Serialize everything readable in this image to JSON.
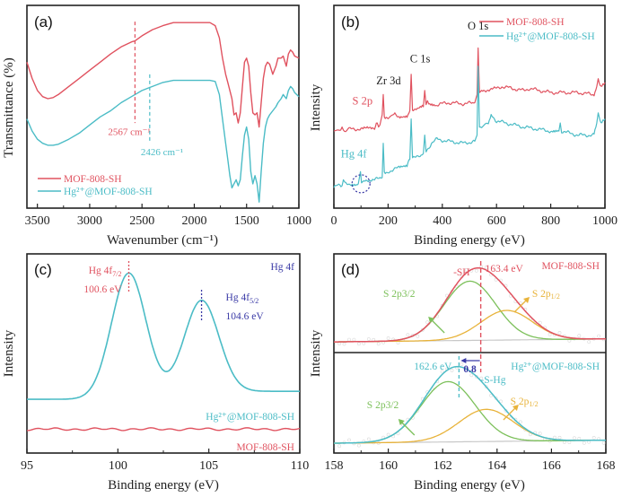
{
  "colors": {
    "red": "#e0525f",
    "cyan": "#4bbcc6",
    "green": "#7cc05a",
    "orange": "#e8b33a",
    "navy": "#3a3aa6",
    "gray": "#c8c8c8",
    "frame": "#222222"
  },
  "chart_data": [
    {
      "panel": "(a)",
      "type": "line",
      "title": "",
      "xlabel": "Wavenumber (cm⁻¹)",
      "ylabel": "Transmittance (%)",
      "xlim": [
        3600,
        1000
      ],
      "x_reversed": true,
      "ylim": [
        0,
        100
      ],
      "y_ticks_shown": false,
      "x_ticks": [
        3500,
        3000,
        2500,
        2000,
        1500,
        1000
      ],
      "x_tick_labels": [
        "3500",
        "3000",
        "2500",
        "2000",
        "1500",
        "1000"
      ],
      "legend": {
        "placement": "bottom-left",
        "entries": [
          "MOF-808-SH",
          "Hg²⁺@MOF-808-SH"
        ]
      },
      "series": [
        {
          "name": "MOF-808-SH",
          "color_key": "red",
          "x": [
            3600,
            3550,
            3500,
            3450,
            3400,
            3350,
            3300,
            3200,
            3100,
            3000,
            2900,
            2800,
            2700,
            2600,
            2567,
            2500,
            2400,
            2300,
            2200,
            2100,
            2000,
            1900,
            1850,
            1800,
            1760,
            1730,
            1700,
            1680,
            1660,
            1640,
            1620,
            1600,
            1580,
            1560,
            1540,
            1520,
            1500,
            1480,
            1460,
            1440,
            1420,
            1400,
            1380,
            1360,
            1340,
            1320,
            1300,
            1280,
            1250,
            1220,
            1200,
            1170,
            1150,
            1120,
            1100,
            1080,
            1060,
            1040,
            1000
          ],
          "y": [
            72,
            64,
            58,
            55,
            54,
            54.5,
            56,
            60,
            64,
            68,
            72,
            76,
            79.5,
            82,
            82.5,
            85,
            88,
            90,
            91.5,
            91.5,
            91.5,
            91.5,
            91.5,
            90,
            84,
            74,
            66,
            62,
            58,
            54,
            46,
            47,
            42,
            47,
            60,
            72,
            74,
            70,
            57,
            47,
            46,
            47,
            40,
            52,
            64,
            70,
            72,
            71,
            66,
            70,
            74,
            74,
            75,
            70,
            76,
            78,
            77,
            75,
            74
          ]
        },
        {
          "name": "Hg²⁺@MOF-808-SH",
          "color_key": "cyan",
          "x": [
            3600,
            3550,
            3500,
            3450,
            3400,
            3350,
            3300,
            3200,
            3100,
            3000,
            2900,
            2800,
            2700,
            2600,
            2500,
            2426,
            2400,
            2300,
            2200,
            2100,
            2000,
            1900,
            1850,
            1800,
            1760,
            1730,
            1700,
            1680,
            1660,
            1640,
            1620,
            1600,
            1580,
            1560,
            1540,
            1520,
            1500,
            1480,
            1460,
            1440,
            1420,
            1400,
            1380,
            1360,
            1340,
            1320,
            1300,
            1280,
            1250,
            1220,
            1200,
            1170,
            1150,
            1120,
            1100,
            1080,
            1060,
            1040,
            1000
          ],
          "y": [
            44,
            38,
            34,
            32,
            31,
            31,
            31.5,
            34,
            37,
            41,
            45,
            48,
            52,
            55,
            58,
            59.5,
            60,
            62,
            63,
            63,
            63,
            63,
            63,
            62.5,
            56,
            44,
            32,
            24,
            16,
            10,
            12,
            14,
            11,
            14,
            26,
            36,
            40,
            34,
            18,
            12,
            16,
            12,
            3,
            18,
            32,
            40,
            44,
            46,
            48,
            50,
            52,
            54,
            56,
            54,
            58,
            60,
            59,
            57,
            55
          ]
        }
      ],
      "annotations": [
        {
          "text": "2567 cm⁻¹",
          "x": 2567,
          "color_key": "red",
          "style": "dashed-vertical"
        },
        {
          "text": "2426 cm⁻¹",
          "x": 2426,
          "color_key": "cyan",
          "style": "dashed-vertical"
        }
      ]
    },
    {
      "panel": "(b)",
      "type": "line",
      "title": "",
      "xlabel": "Binding energy (eV)",
      "ylabel": "Intensity",
      "xlim": [
        0,
        1000
      ],
      "ylim": [
        0,
        100
      ],
      "y_ticks_shown": false,
      "x_ticks": [
        0,
        200,
        400,
        600,
        800,
        1000
      ],
      "x_tick_labels": [
        "0",
        "200",
        "400",
        "600",
        "800",
        "1000"
      ],
      "legend": {
        "placement": "top-right",
        "entries": [
          "MOF-808-SH",
          "Hg²⁺@MOF-808-SH"
        ]
      },
      "series": [
        {
          "name": "MOF-808-SH",
          "color_key": "red",
          "x": [
            0,
            25,
            30,
            35,
            60,
            100,
            150,
            160,
            165,
            170,
            178,
            182,
            186,
            200,
            225,
            230,
            240,
            270,
            280,
            285,
            290,
            300,
            330,
            335,
            340,
            345,
            350,
            380,
            420,
            480,
            520,
            528,
            532,
            537,
            545,
            600,
            620,
            700,
            720,
            800,
            900,
            960,
            970,
            975,
            985,
            1000
          ],
          "y": [
            38,
            38.5,
            40,
            38.5,
            39,
            39,
            39.5,
            42,
            40,
            41,
            46,
            56,
            44,
            44,
            47,
            45,
            45,
            45,
            48,
            66,
            48,
            48,
            50,
            58,
            51,
            53,
            52,
            51,
            52,
            51.5,
            52,
            56,
            79,
            57,
            58,
            59,
            60,
            58,
            59,
            57,
            57,
            56,
            60,
            64,
            60,
            62
          ]
        },
        {
          "name": "Hg²⁺@MOF-808-SH",
          "color_key": "cyan",
          "x": [
            0,
            10,
            30,
            35,
            40,
            60,
            90,
            98,
            102,
            106,
            115,
            150,
            178,
            182,
            186,
            200,
            240,
            270,
            280,
            285,
            290,
            310,
            330,
            335,
            340,
            360,
            380,
            420,
            480,
            520,
            528,
            532,
            537,
            545,
            570,
            580,
            600,
            700,
            800,
            830,
            835,
            840,
            900,
            960,
            970,
            975,
            985,
            1000
          ],
          "y": [
            10,
            11,
            11,
            14,
            12,
            12,
            12,
            18,
            12.5,
            13,
            14,
            14,
            15,
            32,
            18,
            18,
            20,
            21,
            24,
            44,
            25,
            25,
            27,
            36,
            28,
            32,
            34,
            33,
            32,
            33,
            36,
            70,
            40,
            40,
            42,
            46,
            43,
            40,
            38,
            38,
            42,
            38,
            36,
            36,
            42,
            46,
            42,
            44
          ]
        }
      ],
      "annotations": [
        {
          "text": "O 1s",
          "x": 532,
          "color_key": "frame"
        },
        {
          "text": "C 1s",
          "x": 285,
          "color_key": "frame"
        },
        {
          "text": "Zr 3d",
          "x": 182,
          "color_key": "frame"
        },
        {
          "text": "S 2p",
          "x": 165,
          "color_key": "red"
        },
        {
          "text": "Hg 4f",
          "x": 100,
          "color_key": "cyan"
        }
      ]
    },
    {
      "panel": "(c)",
      "type": "line",
      "title": "Hg 4f",
      "xlabel": "Binding energy (eV)",
      "ylabel": "Intensity",
      "xlim": [
        95,
        110
      ],
      "ylim": [
        0,
        100
      ],
      "y_ticks_shown": false,
      "x_ticks": [
        95,
        100,
        105,
        110
      ],
      "x_tick_labels": [
        "95",
        "100",
        "105",
        "110"
      ],
      "series": [
        {
          "name": "Hg²⁺@MOF-808-SH",
          "color_key": "cyan",
          "model": "two-gaussian",
          "baseline_left": 27,
          "baseline_right": 31,
          "peaks": [
            {
              "center": 100.6,
              "height": 63,
              "sigma": 0.95
            },
            {
              "center": 104.6,
              "height": 46,
              "sigma": 0.95
            }
          ]
        },
        {
          "name": "MOF-808-SH",
          "color_key": "red",
          "model": "flat",
          "level": 12
        }
      ],
      "annotations": [
        {
          "label": "Hg 4f",
          "sub": "7/2",
          "value": "100.6 eV",
          "x": 100.6,
          "color_key": "red"
        },
        {
          "label": "Hg 4f",
          "sub": "5/2",
          "value": "104.6 eV",
          "x": 104.6,
          "color_key": "navy"
        }
      ],
      "series_labels": [
        "Hg²⁺@MOF-808-SH",
        "MOF-808-SH"
      ]
    },
    {
      "panel": "(d)",
      "type": "line",
      "title": "",
      "xlabel": "Binding energy  (eV)",
      "ylabel": "Intensity",
      "xlim": [
        158,
        168
      ],
      "ylim": [
        0,
        100
      ],
      "y_ticks_shown": false,
      "x_ticks": [
        158,
        160,
        162,
        164,
        166,
        168
      ],
      "x_tick_labels": [
        "158",
        "160",
        "162",
        "164",
        "166",
        "168"
      ],
      "subplots": [
        {
          "name": "MOF-808-SH",
          "envelope_label": "-SH",
          "envelope_color_key": "red",
          "peak_energy": 163.4,
          "peak_label": "163.4 eV",
          "components": [
            {
              "name": "S 2p3/2",
              "color_key": "green",
              "center": 163.0,
              "height": 60,
              "sigma": 0.95
            },
            {
              "name": "S 2p1/2",
              "color_key": "orange",
              "center": 164.35,
              "height": 30,
              "sigma": 0.95
            }
          ]
        },
        {
          "name": "Hg²⁺@MOF-808-SH",
          "envelope_label": "-S-Hg",
          "envelope_color_key": "cyan",
          "peak_energy": 162.6,
          "peak_label": "162.6 eV",
          "components": [
            {
              "name": "S 2p3/2",
              "color_key": "green",
              "center": 162.2,
              "height": 60,
              "sigma": 1.0
            },
            {
              "name": "S 2p1/2",
              "color_key": "orange",
              "center": 163.6,
              "height": 32,
              "sigma": 1.0
            }
          ]
        }
      ],
      "shift": {
        "value": "0.8",
        "from": 163.4,
        "to": 162.6,
        "unit": "eV"
      }
    }
  ]
}
